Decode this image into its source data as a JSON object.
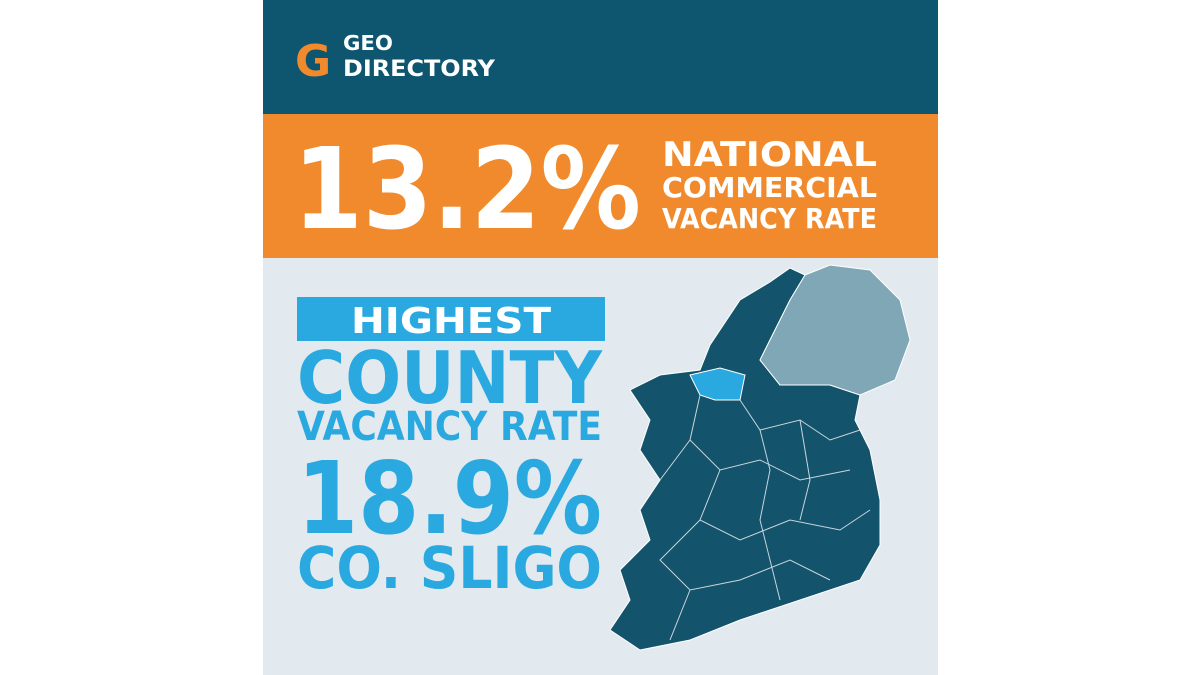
{
  "logo": {
    "mark": "G",
    "line1": "GEO",
    "line2": "DIRECTORY"
  },
  "headline": {
    "figure": "13.2%",
    "line1": "NATIONAL",
    "line2": "COMMERCIAL",
    "line3": "VACANCY RATE"
  },
  "highlight": {
    "badge": "HIGHEST",
    "line1": "COUNTY",
    "line2": "VACANCY RATE",
    "figure": "18.9%",
    "place": "CO. SLIGO"
  }
}
